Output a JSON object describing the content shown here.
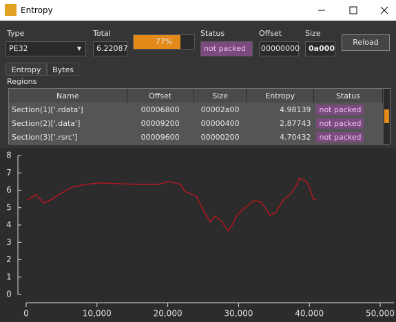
{
  "window": {
    "title": "Entropy"
  },
  "controls": {
    "type": {
      "label": "Type",
      "value": "PE32"
    },
    "total": {
      "label": "Total",
      "value": "6.22087"
    },
    "progress": {
      "value": 77,
      "label": "77%"
    },
    "status": {
      "label": "Status",
      "value": "not packed"
    },
    "offset": {
      "label": "Offset",
      "value": "00000000"
    },
    "size": {
      "label": "Size",
      "value": "0a000"
    },
    "reload": "Reload"
  },
  "tabs": [
    "Entropy",
    "Bytes"
  ],
  "regions": {
    "label": "Regions",
    "table": {
      "headers": [
        "Name",
        "Offset",
        "Size",
        "Entropy",
        "Status"
      ],
      "rows": [
        [
          "Section(1)['.rdata']",
          "00006800",
          "00002a00",
          "4.98139",
          "not packed"
        ],
        [
          "Section(2)['.data']",
          "00009200",
          "00000400",
          "2.87743",
          "not packed"
        ],
        [
          "Section(3)['.rsrc']",
          "00009600",
          "00000200",
          "4.70432",
          "not packed"
        ]
      ]
    }
  },
  "chart_data": {
    "type": "line",
    "color": "#c8141e",
    "x": [
      200,
      1360,
      2530,
      3600,
      5060,
      6520,
      8460,
      10400,
      12840,
      15760,
      18680,
      20140,
      21790,
      22370,
      24030,
      25000,
      25970,
      26650,
      27430,
      28600,
      29860,
      30540,
      32100,
      33070,
      33750,
      34440,
      35210,
      36380,
      37350,
      38130,
      38620,
      39590,
      40080,
      40560,
      41050
    ],
    "values": [
      5.45,
      5.74,
      5.27,
      5.47,
      5.86,
      6.18,
      6.34,
      6.42,
      6.38,
      6.34,
      6.34,
      6.5,
      6.34,
      5.94,
      5.66,
      4.87,
      4.16,
      4.51,
      4.28,
      3.64,
      4.59,
      4.87,
      5.39,
      5.35,
      4.99,
      4.55,
      4.71,
      5.47,
      5.78,
      6.26,
      6.69,
      6.5,
      6.1,
      5.47,
      5.47
    ],
    "xlim": [
      0,
      50000
    ],
    "xticks": [
      0,
      {
        "value": 10000,
        "label": "10,000"
      },
      {
        "value": 20000,
        "label": "20,000"
      },
      {
        "value": 30000,
        "label": "30,000"
      },
      {
        "value": 40000,
        "label": "40,000"
      },
      {
        "value": 50000,
        "label": "50,000"
      }
    ],
    "ylim": [
      0,
      8
    ],
    "yticks": [
      0,
      1,
      2,
      3,
      4,
      5,
      6,
      7,
      8
    ]
  }
}
